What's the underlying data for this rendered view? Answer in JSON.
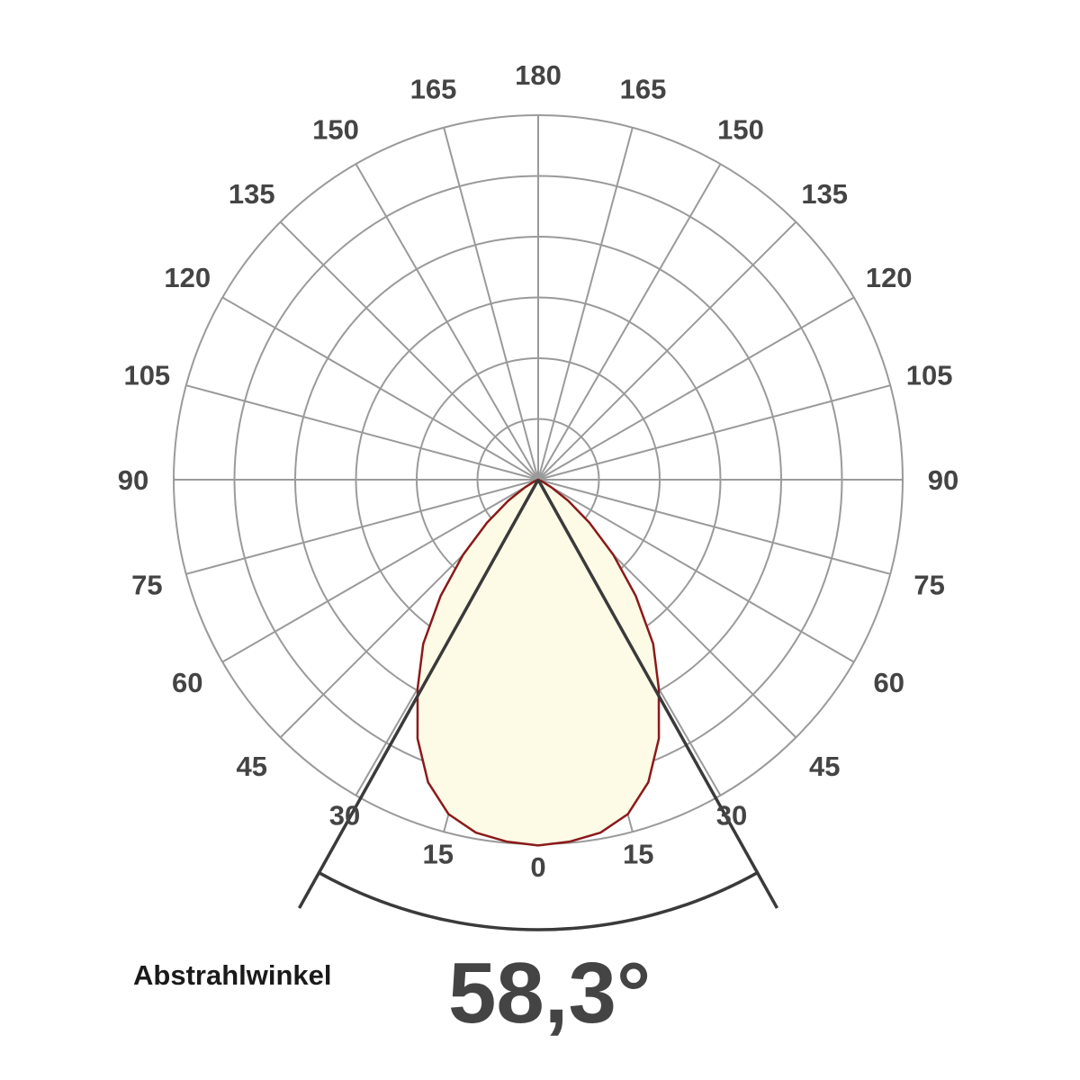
{
  "diagram": {
    "type": "polar-light-distribution",
    "radial_scale": {
      "rings": 6,
      "max": 6
    },
    "angle_labels": {
      "left": [
        "0",
        "15",
        "30",
        "45",
        "60",
        "75",
        "90",
        "105",
        "120",
        "135",
        "150",
        "165",
        "180"
      ],
      "right": [
        "15",
        "30",
        "45",
        "60",
        "75",
        "90",
        "105",
        "120",
        "135",
        "150",
        "165"
      ]
    },
    "distribution_profile": [
      [
        0,
        6.02
      ],
      [
        5,
        5.98
      ],
      [
        10,
        5.9
      ],
      [
        15,
        5.7
      ],
      [
        20,
        5.3
      ],
      [
        25,
        4.7
      ],
      [
        30,
        3.97
      ],
      [
        35,
        3.3
      ],
      [
        40,
        2.5
      ],
      [
        45,
        1.75
      ],
      [
        50,
        1.1
      ],
      [
        55,
        0.6
      ],
      [
        60,
        0.25
      ],
      [
        65,
        0.08
      ],
      [
        70,
        0.0
      ]
    ],
    "beam_angle_degrees": 58.3,
    "colors": {
      "grid": "#9a9a9a",
      "labels": "#444444",
      "lobe_fill": "#fdfae6",
      "lobe_stroke": "#8b1a1a",
      "beam_lines": "#3a3a3a"
    }
  },
  "footer": {
    "label": "Abstrahlwinkel",
    "value": "58,3°"
  }
}
